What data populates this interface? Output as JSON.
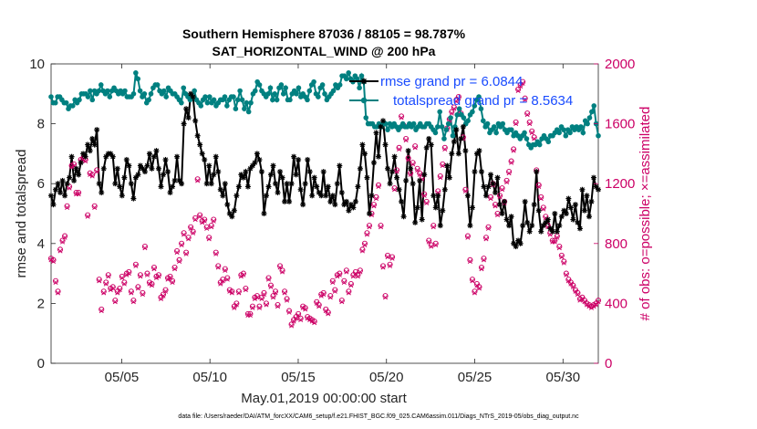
{
  "chart_data": {
    "type": "line",
    "title": "Southern Hemisphere 87036 / 88105 = 98.787%",
    "subtitle": "SAT_HORIZONTAL_WIND @ 200 hPa",
    "xlabel": "May.01,2019 00:00:00 start",
    "ylabel": "rmse and totalspread",
    "y2label": "# of obs: o=possible; ×=assimilated",
    "xlim": [
      1,
      32
    ],
    "ylim": [
      0,
      10
    ],
    "y2lim": [
      0,
      2000
    ],
    "xticks": [
      5,
      10,
      15,
      20,
      25,
      30
    ],
    "xtick_labels": [
      "05/05",
      "05/10",
      "05/15",
      "05/20",
      "05/25",
      "05/30"
    ],
    "yticks": [
      0,
      2,
      4,
      6,
      8,
      10
    ],
    "ytick_labels": [
      "0",
      "2",
      "4",
      "6",
      "8",
      "10"
    ],
    "y2ticks": [
      0,
      400,
      800,
      1200,
      1600,
      2000
    ],
    "y2tick_labels": [
      "0",
      "400",
      "800",
      "1200",
      "1600",
      "2000"
    ],
    "legend_position": "top-right",
    "colors": {
      "rmse": "#000000",
      "spread": "#008080",
      "obs": "#cc0066",
      "legend_text": "#1a4cff"
    },
    "series": [
      {
        "name": "rmse grand pr = 6.0844",
        "axis": "left",
        "color": "#000000",
        "marker": "asterisk",
        "values": [
          5.6,
          5.3,
          5.8,
          6.0,
          5.7,
          6.1,
          5.6,
          6.0,
          6.2,
          6.9,
          6.1,
          6.5,
          6.3,
          6.7,
          7.0,
          6.9,
          7.3,
          7.1,
          7.5,
          7.3,
          7.8,
          6.0,
          5.7,
          6.5,
          6.9,
          7.0,
          7.0,
          6.9,
          6.0,
          6.5,
          5.9,
          5.6,
          6.2,
          6.8,
          6.6,
          6.0,
          5.5,
          6.2,
          6.3,
          6.6,
          6.5,
          6.4,
          6.6,
          7.0,
          6.5,
          6.9,
          7.1,
          6.5,
          5.9,
          6.3,
          6.8,
          6.4,
          5.7,
          5.9,
          6.1,
          6.9,
          6.1,
          6.0,
          8.0,
          8.5,
          8.2,
          9.0,
          8.9,
          8.1,
          7.6,
          7.3,
          7.0,
          6.8,
          6.0,
          6.6,
          6.0,
          6.3,
          6.9,
          6.4,
          5.8,
          5.6,
          6.0,
          5.3,
          5.0,
          4.9,
          5.1,
          5.6,
          5.9,
          6.3,
          6.2,
          6.4,
          5.9,
          6.5,
          6.6,
          6.7,
          7.0,
          6.8,
          6.4,
          5.0,
          5.6,
          5.9,
          6.3,
          6.6,
          6.0,
          5.7,
          6.4,
          6.2,
          5.4,
          6.0,
          5.4,
          6.0,
          6.9,
          6.3,
          6.8,
          5.8,
          5.3,
          6.0,
          6.8,
          6.4,
          5.6,
          6.2,
          5.9,
          5.7,
          5.6,
          6.4,
          5.6,
          5.9,
          5.4,
          5.6,
          5.3,
          6.0,
          6.6,
          5.7,
          5.3,
          5.4,
          5.1,
          5.3,
          5.2,
          5.4,
          5.9,
          6.5,
          7.3,
          7.0,
          6.2,
          5.0,
          5.6,
          6.7,
          7.7,
          6.9,
          7.9,
          8.1,
          7.3,
          6.5,
          6.0,
          6.4,
          6.9,
          6.2,
          5.8,
          5.4,
          4.9,
          6.1,
          7.1,
          6.5,
          6.0,
          4.7,
          5.2,
          6.1,
          4.8,
          6.3,
          7.2,
          7.5,
          7.3,
          5.6,
          5.2,
          5.6,
          4.6,
          5.1,
          5.8,
          6.6,
          6.2,
          7.0,
          7.4,
          7.8,
          7.0,
          7.5,
          7.9,
          7.1,
          5.6,
          4.6,
          5.2,
          6.4,
          7.0,
          7.1,
          6.4,
          5.9,
          5.6,
          5.9,
          6.3,
          6.0,
          5.7,
          6.2,
          5.3,
          5.0,
          5.4,
          4.8,
          4.6,
          4.9,
          4.0,
          3.9,
          4.1,
          4.0,
          4.6,
          5.4,
          4.7,
          4.4,
          4.6,
          5.3,
          6.4,
          5.1,
          4.4,
          4.6,
          4.7,
          4.8,
          4.5,
          4.4,
          5.0,
          4.4,
          4.6,
          4.9,
          5.1,
          5.0,
          5.5,
          5.2,
          4.8,
          5.3,
          4.7,
          4.5,
          5.8,
          5.1,
          5.6,
          4.9,
          5.4,
          6.2,
          5.9,
          5.8
        ]
      },
      {
        "name": "totalspread grand pr = 8.5634",
        "axis": "left",
        "color": "#008080",
        "marker": "dot",
        "values": [
          8.9,
          8.7,
          8.7,
          8.9,
          8.9,
          8.8,
          8.7,
          8.7,
          8.5,
          8.6,
          8.6,
          8.8,
          8.7,
          8.8,
          9.0,
          9.0,
          9.0,
          8.9,
          9.1,
          8.8,
          9.1,
          9.0,
          9.1,
          9.3,
          9.1,
          9.0,
          9.1,
          8.9,
          9.1,
          9.2,
          9.1,
          9.0,
          9.1,
          9.0,
          9.1,
          8.9,
          8.9,
          8.9,
          9.0,
          9.7,
          9.5,
          9.1,
          8.9,
          9.0,
          8.7,
          8.8,
          9.0,
          9.2,
          9.3,
          9.3,
          9.1,
          9.0,
          9.1,
          8.9,
          9.2,
          9.1,
          9.0,
          9.0,
          8.9,
          8.8,
          8.7,
          9.2,
          9.0,
          8.9,
          8.8,
          8.9,
          9.1,
          8.8,
          8.7,
          8.6,
          8.8,
          8.9,
          8.7,
          8.9,
          8.7,
          8.8,
          8.6,
          8.7,
          8.8,
          8.8,
          8.9,
          8.6,
          8.8,
          8.9,
          8.9,
          8.5,
          8.8,
          9.1,
          8.8,
          8.5,
          8.7,
          8.4,
          8.7,
          9.0,
          9.1,
          9.4,
          9.3,
          9.1,
          9.0,
          8.9,
          9.0,
          9.2,
          8.8,
          9.0,
          8.8,
          9.2,
          9.3,
          9.0,
          9.2,
          8.8,
          8.8,
          9.0,
          9.1,
          9.0,
          9.2,
          8.9,
          9.0,
          8.9,
          8.8,
          9.1,
          9.3,
          9.4,
          9.0,
          8.9,
          9.2,
          9.3,
          9.0,
          8.8,
          8.9,
          9.0,
          9.1,
          9.3,
          9.2,
          9.3,
          9.6,
          9.6,
          9.5,
          9.7,
          9.5,
          9.4,
          9.6,
          9.5,
          9.2,
          9.6,
          9.4,
          8.2,
          8.0,
          8.0,
          8.0,
          7.9,
          7.9,
          8.0,
          7.9,
          8.0,
          8.0,
          7.8,
          8.0,
          7.9,
          8.0,
          7.9,
          7.8,
          7.9,
          8.0,
          7.9,
          7.9,
          8.0,
          7.9,
          8.0,
          7.8,
          7.9,
          8.0,
          7.9,
          7.9,
          8.0,
          8.0,
          7.9,
          7.8,
          7.7,
          7.9,
          8.4,
          7.9,
          7.5,
          7.8,
          8.0,
          8.2,
          7.6,
          7.9,
          8.3,
          8.5,
          8.3,
          8.2,
          8.0,
          8.1,
          8.3,
          8.4,
          8.6,
          8.8,
          8.9,
          8.5,
          8.1,
          7.9,
          8.0,
          7.7,
          7.8,
          7.9,
          7.7,
          8.0,
          7.9,
          8.0,
          7.8,
          7.7,
          7.8,
          7.8,
          7.6,
          7.7,
          7.6,
          7.5,
          7.6,
          7.7,
          7.5,
          7.3,
          7.2,
          7.3,
          7.3,
          7.4,
          7.3,
          7.5,
          7.6,
          7.5,
          7.4,
          7.6,
          7.6,
          7.7,
          7.8,
          7.7,
          7.9,
          7.8,
          7.6,
          7.8,
          7.7,
          7.9,
          7.8,
          7.9,
          7.8,
          7.9,
          7.7,
          8.1,
          8.0,
          8.2,
          8.4,
          8.6,
          8.0,
          7.6
        ]
      },
      {
        "name": "possible obs",
        "axis": "right",
        "color": "#cc0066",
        "marker": "circle",
        "values": [
          700,
          690,
          550,
          480,
          760,
          820,
          850,
          1050,
          1180,
          1320,
          1330,
          1140,
          1140,
          1360,
          1370,
          1360,
          990,
          1270,
          1260,
          1050,
          1290,
          560,
          360,
          480,
          540,
          590,
          500,
          510,
          420,
          480,
          500,
          580,
          540,
          600,
          610,
          480,
          420,
          660,
          510,
          590,
          470,
          780,
          600,
          540,
          530,
          640,
          580,
          590,
          440,
          460,
          490,
          570,
          580,
          550,
          640,
          750,
          690,
          800,
          870,
          740,
          840,
          910,
          880,
          970,
          1230,
          990,
          950,
          960,
          910,
          840,
          920,
          960,
          740,
          650,
          540,
          560,
          630,
          570,
          490,
          480,
          380,
          400,
          480,
          590,
          600,
          500,
          330,
          330,
          380,
          440,
          450,
          380,
          440,
          470,
          400,
          570,
          520,
          450,
          480,
          390,
          650,
          620,
          480,
          430,
          350,
          260,
          290,
          310,
          330,
          300,
          380,
          370,
          310,
          300,
          290,
          280,
          410,
          390,
          460,
          470,
          360,
          340,
          450,
          550,
          490,
          590,
          600,
          420,
          550,
          620,
          480,
          530,
          590,
          610,
          590,
          620,
          760,
          800,
          870,
          920,
          1000,
          1060,
          1110,
          1190,
          920,
          650,
          450,
          720,
          660,
          710,
          1170,
          1290,
          1440,
          1650,
          1590,
          1500,
          1370,
          1270,
          1340,
          1450,
          1300,
          1270,
          1240,
          1130,
          1080,
          820,
          790,
          920,
          800,
          1150,
          1250,
          1330,
          1440,
          1570,
          1630,
          1680,
          1710,
          1760,
          1780,
          1670,
          1510,
          1160,
          850,
          690,
          560,
          480,
          530,
          510,
          640,
          700,
          840,
          910,
          1110,
          1200,
          1060,
          1000,
          1120,
          1170,
          1080,
          1220,
          1280,
          1350,
          1430,
          1610,
          1830,
          1860,
          1880,
          1770,
          1670,
          1610,
          1550,
          1510,
          1290,
          1190,
          1110,
          1040,
          980,
          920,
          870,
          820,
          820,
          850,
          780,
          720,
          680,
          600,
          560,
          540,
          520,
          490,
          470,
          430,
          440,
          420,
          400,
          390,
          380,
          390,
          400,
          420
        ]
      },
      {
        "name": "assimilated obs",
        "axis": "right",
        "color": "#cc0066",
        "marker": "x",
        "values": [
          690,
          680,
          540,
          470,
          750,
          810,
          840,
          1040,
          1170,
          1310,
          1320,
          1130,
          1130,
          1350,
          1360,
          1350,
          980,
          1260,
          1250,
          1040,
          1280,
          550,
          350,
          470,
          530,
          580,
          490,
          500,
          410,
          470,
          490,
          570,
          530,
          590,
          600,
          470,
          410,
          650,
          500,
          580,
          460,
          770,
          590,
          530,
          520,
          630,
          570,
          580,
          430,
          450,
          480,
          560,
          570,
          540,
          630,
          740,
          680,
          790,
          860,
          730,
          830,
          900,
          870,
          960,
          1220,
          980,
          940,
          950,
          900,
          830,
          910,
          950,
          730,
          640,
          530,
          550,
          620,
          560,
          480,
          470,
          370,
          390,
          470,
          580,
          590,
          490,
          320,
          320,
          370,
          430,
          440,
          370,
          430,
          460,
          390,
          560,
          510,
          440,
          470,
          380,
          640,
          610,
          470,
          420,
          340,
          250,
          280,
          300,
          320,
          290,
          370,
          360,
          300,
          290,
          280,
          270,
          400,
          380,
          450,
          460,
          350,
          330,
          440,
          540,
          480,
          580,
          590,
          410,
          540,
          610,
          470,
          520,
          580,
          600,
          580,
          610,
          750,
          790,
          860,
          910,
          990,
          1050,
          1100,
          1180,
          910,
          640,
          440,
          710,
          650,
          700,
          1160,
          1280,
          1430,
          1640,
          1580,
          1490,
          1360,
          1260,
          1330,
          1440,
          1290,
          1260,
          1230,
          1120,
          1070,
          810,
          780,
          910,
          790,
          1140,
          1240,
          1320,
          1430,
          1560,
          1620,
          1670,
          1700,
          1750,
          1770,
          1660,
          1500,
          1150,
          840,
          680,
          550,
          470,
          520,
          500,
          630,
          690,
          830,
          900,
          1100,
          1190,
          1050,
          990,
          1110,
          1160,
          1070,
          1210,
          1270,
          1340,
          1420,
          1600,
          1820,
          1850,
          1870,
          1760,
          1660,
          1600,
          1540,
          1500,
          1280,
          1180,
          1100,
          1030,
          970,
          910,
          860,
          810,
          810,
          840,
          770,
          710,
          670,
          590,
          550,
          530,
          510,
          480,
          460,
          420,
          430,
          410,
          390,
          380,
          370,
          380,
          390,
          410
        ]
      }
    ]
  },
  "footer": {
    "data_file": "data file: /Users/raeder/DAI/ATM_forcXX/CAM6_setup/f.e21.FHIST_BGC.f09_025.CAM6assim.011/Diags_NTrS_2019-05/obs_diag_output.nc"
  }
}
